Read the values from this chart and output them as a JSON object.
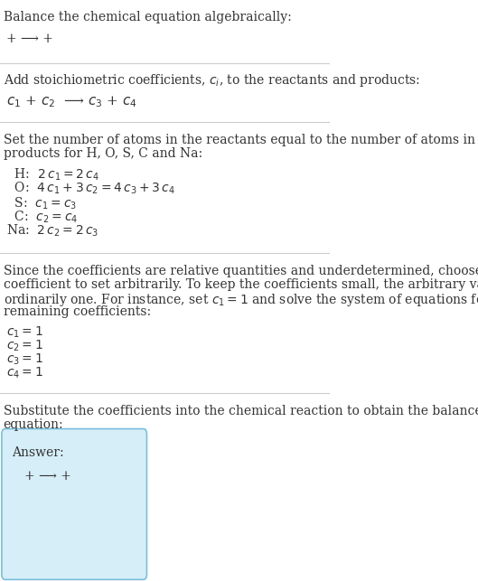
{
  "bg_color": "#ffffff",
  "text_color": "#333333",
  "line_color": "#cccccc",
  "section1_title": "Balance the chemical equation algebraically:",
  "section1_line": "+ ⟶ +",
  "section2_title": "Add stoichiometric coefficients, $c_i$, to the reactants and products:",
  "section2_line": "$c_1$ + $c_2$  ⟶ $c_3$ + $c_4$",
  "section3_title": "Set the number of atoms in the reactants equal to the number of atoms in the\nproducts for H, O, S, C and Na:",
  "section3_equations": [
    "  H:  $2\\,c_1 = 2\\,c_4$",
    "  O:  $4\\,c_1 + 3\\,c_2 = 4\\,c_3 + 3\\,c_4$",
    "  S:  $c_1 = c_3$",
    "  C:  $c_2 = c_4$",
    "Na:  $2\\,c_2 = 2\\,c_3$"
  ],
  "section4_title": "Since the coefficients are relative quantities and underdetermined, choose a\ncoefficient to set arbitrarily. To keep the coefficients small, the arbitrary value is\nordinarily one. For instance, set $c_1 = 1$ and solve the system of equations for the\nremaining coefficients:",
  "section4_solutions": [
    "$c_1 = 1$",
    "$c_2 = 1$",
    "$c_3 = 1$",
    "$c_4 = 1$"
  ],
  "section5_title": "Substitute the coefficients into the chemical reaction to obtain the balanced\nequation:",
  "answer_label": "Answer:",
  "answer_line": "+ ⟶ +",
  "answer_box_color": "#d6eef8",
  "answer_box_border": "#7abfdf",
  "font_size_title": 10,
  "font_size_body": 10,
  "font_size_small": 9.5
}
